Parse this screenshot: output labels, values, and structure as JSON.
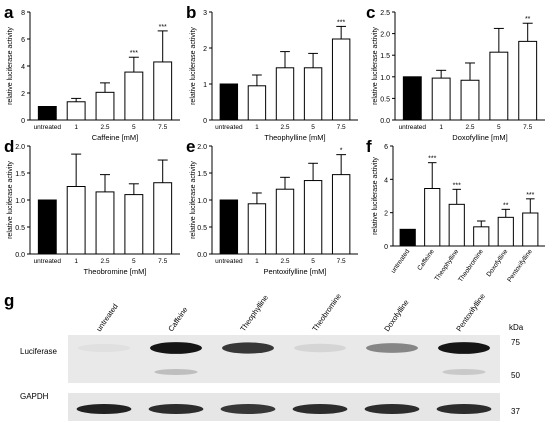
{
  "figure": {
    "panel_letters": [
      "a",
      "b",
      "c",
      "d",
      "e",
      "f",
      "g"
    ]
  },
  "chart_data": [
    {
      "panel": "a",
      "type": "bar",
      "ylabel": "relative luciferase activity",
      "xlabel": "Caffeine [mM]",
      "categories": [
        "untreated",
        "1",
        "2.5",
        "5",
        "7.5"
      ],
      "values": [
        1.0,
        1.35,
        2.05,
        3.55,
        4.3
      ],
      "errors": [
        0.0,
        0.25,
        0.7,
        1.1,
        2.3
      ],
      "significance": [
        "",
        "",
        "",
        "***",
        "***"
      ],
      "ylim": [
        0,
        8
      ],
      "yticks": [
        "0",
        "2",
        "4",
        "6",
        "8"
      ],
      "bar_colors": [
        "#000000",
        "#ffffff",
        "#ffffff",
        "#ffffff",
        "#ffffff"
      ]
    },
    {
      "panel": "b",
      "type": "bar",
      "ylabel": "relative luciferase activity",
      "xlabel": "Theophylline [mM]",
      "categories": [
        "untreated",
        "1",
        "2.5",
        "5",
        "7.5"
      ],
      "values": [
        1.0,
        0.95,
        1.45,
        1.45,
        2.25
      ],
      "errors": [
        0.0,
        0.3,
        0.45,
        0.4,
        0.35
      ],
      "significance": [
        "",
        "",
        "",
        "",
        "***"
      ],
      "ylim": [
        0,
        3
      ],
      "yticks": [
        "0",
        "1",
        "2",
        "3"
      ],
      "bar_colors": [
        "#000000",
        "#ffffff",
        "#ffffff",
        "#ffffff",
        "#ffffff"
      ]
    },
    {
      "panel": "c",
      "type": "bar",
      "ylabel": "relative luciferase activity",
      "xlabel": "Doxofylline [mM]",
      "categories": [
        "untreated",
        "1",
        "2.5",
        "5",
        "7.5"
      ],
      "values": [
        1.0,
        0.97,
        0.92,
        1.57,
        1.82
      ],
      "errors": [
        0.0,
        0.18,
        0.4,
        0.55,
        0.42
      ],
      "significance": [
        "",
        "",
        "",
        "",
        "**"
      ],
      "ylim": [
        0,
        2.5
      ],
      "yticks": [
        "0.0",
        "0.5",
        "1.0",
        "1.5",
        "2.0",
        "2.5"
      ],
      "bar_colors": [
        "#000000",
        "#ffffff",
        "#ffffff",
        "#ffffff",
        "#ffffff"
      ]
    },
    {
      "panel": "d",
      "type": "bar",
      "ylabel": "relative luciferase activity",
      "xlabel": "Theobromine [mM]",
      "categories": [
        "untreated",
        "1",
        "2.5",
        "5",
        "7.5"
      ],
      "values": [
        1.0,
        1.25,
        1.15,
        1.1,
        1.32
      ],
      "errors": [
        0.0,
        0.6,
        0.32,
        0.2,
        0.42
      ],
      "significance": [
        "",
        "",
        "",
        "",
        ""
      ],
      "ylim": [
        0,
        2
      ],
      "yticks": [
        "0.0",
        "0.5",
        "1.0",
        "1.5",
        "2.0"
      ],
      "bar_colors": [
        "#000000",
        "#ffffff",
        "#ffffff",
        "#ffffff",
        "#ffffff"
      ]
    },
    {
      "panel": "e",
      "type": "bar",
      "ylabel": "relative luciferase activity",
      "xlabel": "Pentoxifylline [mM]",
      "categories": [
        "untreated",
        "1",
        "2.5",
        "5",
        "7.5"
      ],
      "values": [
        1.0,
        0.93,
        1.2,
        1.36,
        1.47
      ],
      "errors": [
        0.0,
        0.2,
        0.22,
        0.32,
        0.37
      ],
      "significance": [
        "",
        "",
        "",
        "",
        "*"
      ],
      "ylim": [
        0,
        2
      ],
      "yticks": [
        "0.0",
        "0.5",
        "1.0",
        "1.5",
        "2.0"
      ],
      "bar_colors": [
        "#000000",
        "#ffffff",
        "#ffffff",
        "#ffffff",
        "#ffffff"
      ]
    },
    {
      "panel": "f",
      "type": "bar",
      "ylabel": "relative luciferase activity",
      "xlabel": "",
      "categories": [
        "untreated",
        "Caffeine",
        "Theophylline",
        "Theobromine",
        "Doxofylline",
        "Pentoxifylline"
      ],
      "values": [
        1.0,
        3.45,
        2.5,
        1.15,
        1.72,
        1.98
      ],
      "errors": [
        0.0,
        1.55,
        0.9,
        0.35,
        0.48,
        0.85
      ],
      "significance": [
        "",
        "***",
        "***",
        "",
        "**",
        "***"
      ],
      "ylim": [
        0,
        6
      ],
      "yticks": [
        "0",
        "2",
        "4",
        "6"
      ],
      "bar_colors": [
        "#000000",
        "#ffffff",
        "#ffffff",
        "#ffffff",
        "#ffffff",
        "#ffffff"
      ]
    }
  ],
  "western_blot": {
    "panel": "g",
    "lanes": [
      "untreated",
      "Caffeine",
      "Theophylline",
      "Theobromine",
      "Doxofylline",
      "Pentoxifylline"
    ],
    "kda_label": "kDa",
    "top_blot": {
      "label": "Luciferase",
      "markers": [
        "75",
        "50"
      ],
      "band_intensity": [
        0.05,
        0.95,
        0.8,
        0.1,
        0.45,
        0.95
      ],
      "lower_band_intensity": [
        0.0,
        0.2,
        0.0,
        0.0,
        0.0,
        0.15
      ]
    },
    "bottom_blot": {
      "label": "GAPDH",
      "markers": [
        "37"
      ],
      "band_intensity": [
        0.9,
        0.85,
        0.8,
        0.85,
        0.85,
        0.85
      ]
    }
  }
}
